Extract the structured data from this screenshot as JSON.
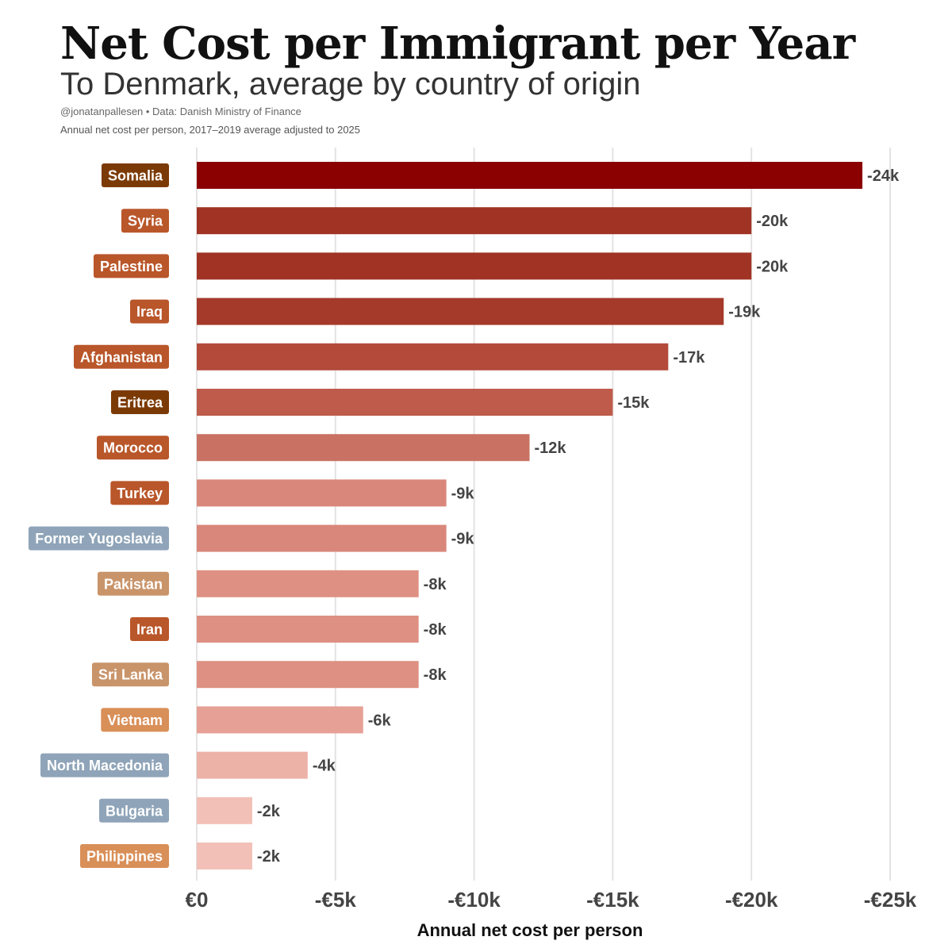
{
  "header": {
    "title": "Net Cost per Immigrant per Year",
    "subtitle": "To Denmark, average by country of origin",
    "credit": "@jonatanpallesen • Data: Danish Ministry of Finance",
    "caption": "Annual net cost per person, 2017–2019 average adjusted to 2025"
  },
  "chart_data": {
    "type": "bar",
    "orientation": "horizontal",
    "xlabel": "Annual net cost per person",
    "xlim": [
      0,
      -25000
    ],
    "x_ticks": [
      0,
      -5000,
      -10000,
      -15000,
      -20000,
      -25000
    ],
    "x_tick_labels": [
      "€0",
      "-€5k",
      "-€10k",
      "-€15k",
      "-€20k",
      "-€25k"
    ],
    "grid": true,
    "categories": [
      "Somalia",
      "Syria",
      "Palestine",
      "Iraq",
      "Afghanistan",
      "Eritrea",
      "Morocco",
      "Turkey",
      "Former Yugoslavia",
      "Pakistan",
      "Iran",
      "Sri Lanka",
      "Vietnam",
      "North Macedonia",
      "Bulgaria",
      "Philippines"
    ],
    "values": [
      -24000,
      -20000,
      -20000,
      -19000,
      -17000,
      -15000,
      -12000,
      -9000,
      -9000,
      -8000,
      -8000,
      -8000,
      -6000,
      -4000,
      -2000,
      -2000
    ],
    "value_labels": [
      "-24k",
      "-20k",
      "-20k",
      "-19k",
      "-17k",
      "-15k",
      "-12k",
      "-9k",
      "-9k",
      "-8k",
      "-8k",
      "-8k",
      "-6k",
      "-4k",
      "-2k",
      "-2k"
    ],
    "bar_colors": [
      "#8b0000",
      "#a03323",
      "#a03323",
      "#a53a2b",
      "#b34a3a",
      "#be5b4b",
      "#c97263",
      "#d9877a",
      "#d9877a",
      "#de9082",
      "#de9082",
      "#de9082",
      "#e6a095",
      "#ecb1a7",
      "#f3c0b8",
      "#f3c0b8"
    ],
    "label_colors": [
      "#7b3a05",
      "#b9562a",
      "#b9562a",
      "#b9562a",
      "#b9562a",
      "#7b3a05",
      "#b9562a",
      "#b9562a",
      "#8fa4b8",
      "#c9946a",
      "#b9562a",
      "#c9946a",
      "#d98f58",
      "#8fa4b8",
      "#8fa4b8",
      "#d98f58"
    ]
  }
}
